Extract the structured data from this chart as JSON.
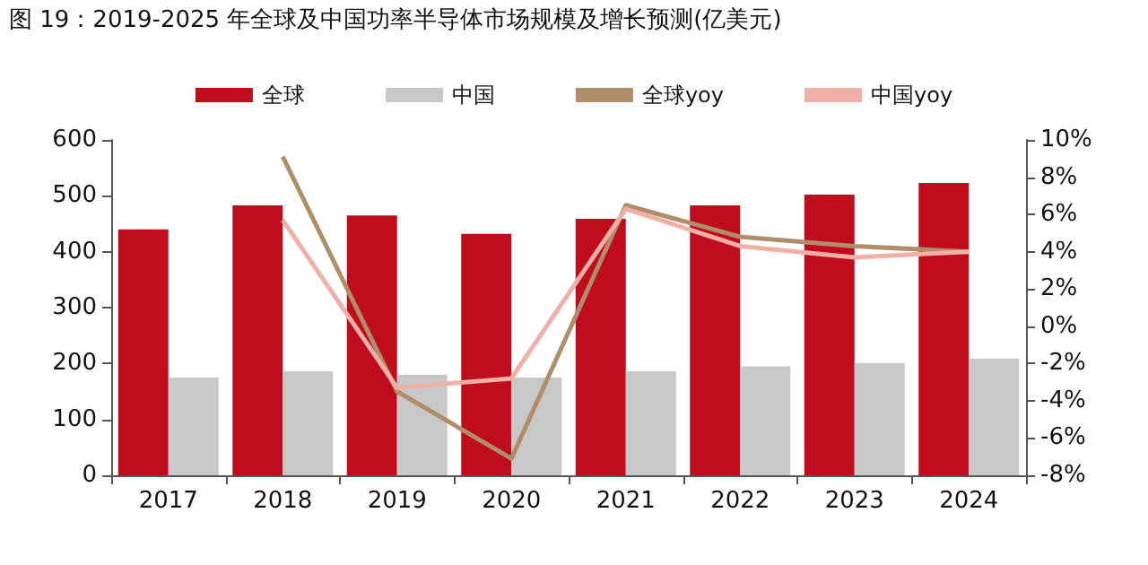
{
  "chart_data": {
    "type": "bar",
    "title": "图 19：2019-2025 年全球及中国功率半导体市场规模及增长预测(亿美元)",
    "categories": [
      "2017",
      "2018",
      "2019",
      "2020",
      "2021",
      "2022",
      "2023",
      "2024"
    ],
    "series": [
      {
        "name": "全球",
        "color": "#c00d1e",
        "values": [
          440,
          483,
          465,
          432,
          459,
          483,
          502,
          523
        ]
      },
      {
        "name": "中国",
        "color": "#c8c8c8",
        "values": [
          175,
          186,
          180,
          175,
          186,
          195,
          201,
          209
        ]
      },
      {
        "name": "全球yoy",
        "type": "line",
        "axis": "y2",
        "color": "#b08e6a",
        "values": [
          null,
          9.1,
          -3.5,
          -7.1,
          6.5,
          4.8,
          4.3,
          4.0
        ]
      },
      {
        "name": "中国yoy",
        "type": "line",
        "axis": "y2",
        "color": "#f0b0a8",
        "values": [
          null,
          5.7,
          -3.3,
          -2.8,
          6.3,
          4.3,
          3.7,
          4.0
        ]
      }
    ],
    "ylim": [
      0,
      600
    ],
    "yticks": [
      0,
      100,
      200,
      300,
      400,
      500,
      600
    ],
    "y2lim": [
      -8,
      10
    ],
    "y2ticks": [
      {
        "value": -8,
        "label": "-8%"
      },
      {
        "value": -6,
        "label": "-6%"
      },
      {
        "value": -4,
        "label": "-4%"
      },
      {
        "value": -2,
        "label": "-2%"
      },
      {
        "value": 0,
        "label": "0%"
      },
      {
        "value": 2,
        "label": "2%"
      },
      {
        "value": 4,
        "label": "4%"
      },
      {
        "value": 6,
        "label": "6%"
      },
      {
        "value": 8,
        "label": "8%"
      },
      {
        "value": 10,
        "label": "10%"
      }
    ],
    "legend": "top",
    "grid": false,
    "marker": "none",
    "line_style": "solid"
  }
}
